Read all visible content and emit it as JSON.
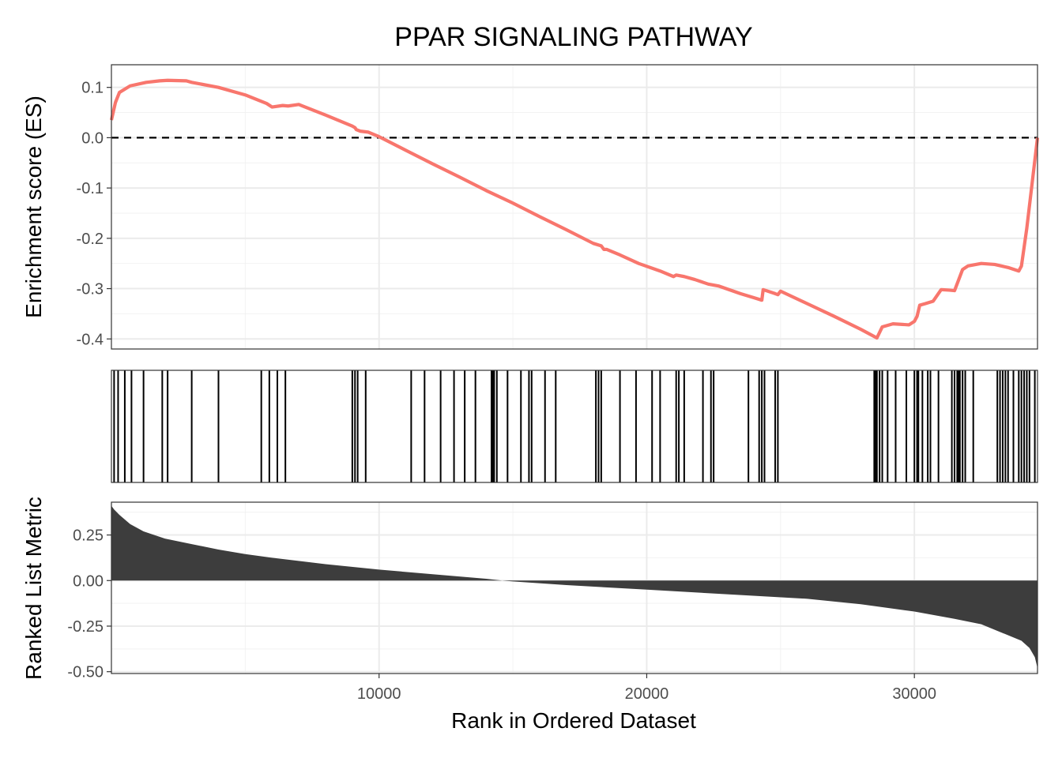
{
  "chart_data": {
    "type": "line",
    "title": "PPAR SIGNALING PATHWAY",
    "xlabel": "Rank in Ordered Dataset",
    "x_range": [
      0,
      34600
    ],
    "x_ticks": [
      10000,
      20000,
      30000
    ],
    "x_tick_labels": [
      "10000",
      "20000",
      "30000"
    ],
    "grid": true,
    "line_color": "#F8766D",
    "bar_color": "#000000",
    "area_color": "#3d3d3d",
    "es_panel": {
      "ylabel": "Enrichment score (ES)",
      "ylim": [
        -0.42,
        0.145
      ],
      "y_ticks": [
        0.1,
        0.0,
        -0.1,
        -0.2,
        -0.3,
        -0.4
      ],
      "y_tick_labels": [
        "0.1",
        "0.0",
        "-0.1",
        "-0.2",
        "-0.3",
        "-0.4"
      ],
      "reference_line": 0.0,
      "series": [
        {
          "x": [
            0,
            150,
            300,
            700,
            1300,
            1800,
            2100,
            2800,
            3000,
            4000,
            5000,
            5800,
            6000,
            6400,
            6600,
            7000,
            8000,
            9000,
            9100,
            9150,
            9300,
            9600,
            10000,
            11000,
            12000,
            13000,
            14000,
            15000,
            16000,
            17000,
            18000,
            18300,
            18400,
            18500,
            19000,
            19700,
            20500,
            21000,
            21100,
            21400,
            21800,
            22300,
            22700,
            23500,
            24000,
            24300,
            24350,
            24800,
            24900,
            25000,
            26000,
            27000,
            28000,
            28600,
            28800,
            29200,
            29800,
            30000,
            30100,
            30200,
            30400,
            30700,
            31000,
            31300,
            31500,
            31800,
            32000,
            32500,
            33000,
            33500,
            33900,
            34000,
            34200,
            34400,
            34600
          ],
          "y": [
            0.035,
            0.07,
            0.09,
            0.103,
            0.11,
            0.113,
            0.114,
            0.113,
            0.11,
            0.1,
            0.085,
            0.068,
            0.061,
            0.064,
            0.063,
            0.066,
            0.045,
            0.023,
            0.02,
            0.016,
            0.013,
            0.011,
            0.002,
            -0.025,
            -0.052,
            -0.078,
            -0.105,
            -0.13,
            -0.157,
            -0.183,
            -0.21,
            -0.215,
            -0.222,
            -0.222,
            -0.233,
            -0.25,
            -0.265,
            -0.276,
            -0.273,
            -0.276,
            -0.282,
            -0.291,
            -0.295,
            -0.31,
            -0.318,
            -0.323,
            -0.302,
            -0.31,
            -0.312,
            -0.305,
            -0.33,
            -0.355,
            -0.381,
            -0.398,
            -0.376,
            -0.37,
            -0.372,
            -0.365,
            -0.355,
            -0.333,
            -0.33,
            -0.325,
            -0.302,
            -0.303,
            -0.304,
            -0.262,
            -0.255,
            -0.25,
            -0.252,
            -0.258,
            -0.265,
            -0.255,
            -0.18,
            -0.09,
            0.0
          ]
        }
      ]
    },
    "hits_panel": {
      "positions": [
        100,
        250,
        500,
        750,
        1200,
        1900,
        2100,
        3000,
        4000,
        5600,
        5900,
        6200,
        6500,
        9000,
        9100,
        9200,
        9500,
        11200,
        11700,
        12300,
        12800,
        13200,
        13600,
        14200,
        14250,
        14300,
        14400,
        14800,
        15300,
        15600,
        15700,
        16200,
        16600,
        18100,
        18200,
        18300,
        19000,
        19600,
        20200,
        20500,
        21100,
        21200,
        21400,
        22100,
        22400,
        22500,
        23800,
        24200,
        24300,
        24400,
        24800,
        24900,
        28500,
        28550,
        28600,
        28700,
        28800,
        29000,
        29300,
        29700,
        30000,
        30100,
        30150,
        30300,
        30500,
        30600,
        30900,
        31400,
        31500,
        31600,
        31650,
        31700,
        31800,
        31900,
        32200,
        33100,
        33200,
        33300,
        33400,
        33500,
        33700,
        33900,
        34000,
        34100,
        34200,
        34300,
        34500
      ]
    },
    "metric_panel": {
      "ylabel": "Ranked List Metric",
      "ylim": [
        -0.51,
        0.43
      ],
      "y_ticks": [
        0.25,
        0.0,
        -0.25,
        -0.5
      ],
      "y_tick_labels": [
        "0.25",
        "0.00",
        "-0.25",
        "-0.50"
      ],
      "x": [
        0,
        100,
        300,
        700,
        1200,
        2000,
        3000,
        4000,
        5000,
        6000,
        8000,
        10000,
        12000,
        14000,
        14600,
        15000,
        17000,
        20000,
        23000,
        26000,
        28000,
        30000,
        31500,
        32500,
        33500,
        34000,
        34300,
        34500,
        34600
      ],
      "values": [
        0.41,
        0.39,
        0.36,
        0.31,
        0.27,
        0.23,
        0.2,
        0.17,
        0.145,
        0.125,
        0.09,
        0.06,
        0.035,
        0.01,
        0.0,
        -0.005,
        -0.025,
        -0.05,
        -0.075,
        -0.1,
        -0.13,
        -0.17,
        -0.21,
        -0.24,
        -0.3,
        -0.33,
        -0.37,
        -0.42,
        -0.48
      ]
    }
  }
}
